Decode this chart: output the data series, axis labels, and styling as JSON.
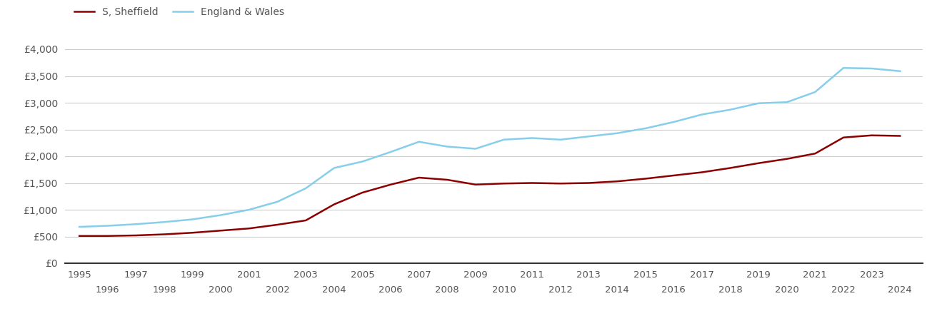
{
  "sheffield": {
    "years": [
      1995,
      1996,
      1997,
      1998,
      1999,
      2000,
      2001,
      2002,
      2003,
      2004,
      2005,
      2006,
      2007,
      2008,
      2009,
      2010,
      2011,
      2012,
      2013,
      2014,
      2015,
      2016,
      2017,
      2018,
      2019,
      2020,
      2021,
      2022,
      2023,
      2024
    ],
    "values": [
      510,
      510,
      520,
      540,
      570,
      610,
      650,
      720,
      800,
      1100,
      1320,
      1470,
      1600,
      1560,
      1470,
      1490,
      1500,
      1490,
      1500,
      1530,
      1580,
      1640,
      1700,
      1780,
      1870,
      1950,
      2050,
      2350,
      2390,
      2380
    ]
  },
  "england_wales": {
    "years": [
      1995,
      1996,
      1997,
      1998,
      1999,
      2000,
      2001,
      2002,
      2003,
      2004,
      2005,
      2006,
      2007,
      2008,
      2009,
      2010,
      2011,
      2012,
      2013,
      2014,
      2015,
      2016,
      2017,
      2018,
      2019,
      2020,
      2021,
      2022,
      2023,
      2024
    ],
    "values": [
      680,
      700,
      730,
      770,
      820,
      900,
      1000,
      1150,
      1400,
      1780,
      1900,
      2080,
      2270,
      2180,
      2140,
      2310,
      2340,
      2310,
      2370,
      2430,
      2520,
      2640,
      2780,
      2870,
      2990,
      3010,
      3200,
      3650,
      3640,
      3590
    ]
  },
  "sheffield_color": "#8B0000",
  "england_wales_color": "#87CEEB",
  "background_color": "#ffffff",
  "grid_color": "#cccccc",
  "legend_labels": [
    "S, Sheffield",
    "England & Wales"
  ],
  "ylim": [
    0,
    4200
  ],
  "yticks": [
    0,
    500,
    1000,
    1500,
    2000,
    2500,
    3000,
    3500,
    4000
  ],
  "ytick_labels": [
    "£0",
    "£500",
    "£1,000",
    "£1,500",
    "£2,000",
    "£2,500",
    "£3,000",
    "£3,500",
    "£4,000"
  ],
  "xlim": [
    1994.5,
    2024.8
  ],
  "line_width": 1.8,
  "odd_years": [
    1995,
    1997,
    1999,
    2001,
    2003,
    2005,
    2007,
    2009,
    2011,
    2013,
    2015,
    2017,
    2019,
    2021,
    2023
  ],
  "even_years": [
    1996,
    1998,
    2000,
    2002,
    2004,
    2006,
    2008,
    2010,
    2012,
    2014,
    2016,
    2018,
    2020,
    2022,
    2024
  ]
}
